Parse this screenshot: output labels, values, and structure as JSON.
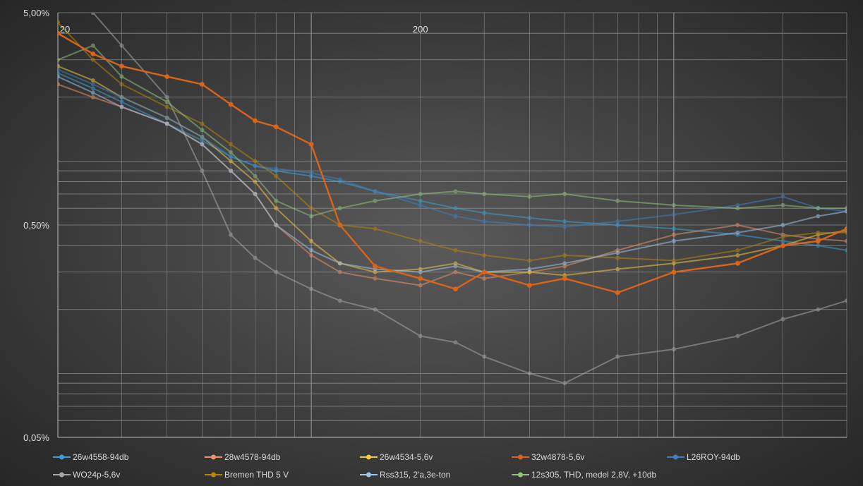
{
  "chart_data": {
    "type": "line",
    "title": "",
    "xlabel": "",
    "ylabel": "",
    "x_scale": "log",
    "y_scale": "log",
    "xlim": [
      20,
      3000
    ],
    "ylim": [
      0.05,
      5
    ],
    "x_tick_labels": [
      {
        "value": 20,
        "label": "20"
      },
      {
        "value": 200,
        "label": "200"
      }
    ],
    "y_tick_labels": [
      {
        "value": 5,
        "label": "5,00%"
      },
      {
        "value": 0.5,
        "label": "0,50%"
      },
      {
        "value": 0.05,
        "label": "0,05%"
      }
    ],
    "grid": true,
    "legend_position": "bottom",
    "series": [
      {
        "name": "26w4558-94db",
        "color": "#3aa1d8",
        "x": [
          20,
          25,
          30,
          40,
          50,
          60,
          70,
          80,
          100,
          120,
          150,
          200,
          250,
          300,
          400,
          500,
          700,
          1000,
          1500,
          2000,
          2500,
          3000
        ],
        "y": [
          2.6,
          2.2,
          1.9,
          1.5,
          1.25,
          1.05,
          0.95,
          0.9,
          0.85,
          0.8,
          0.72,
          0.65,
          0.6,
          0.57,
          0.54,
          0.52,
          0.5,
          0.48,
          0.45,
          0.42,
          0.4,
          0.38
        ]
      },
      {
        "name": "28w4578-94db",
        "color": "#e8936a",
        "x": [
          20,
          25,
          30,
          40,
          50,
          60,
          70,
          80,
          100,
          120,
          150,
          200,
          250,
          300,
          400,
          500,
          700,
          1000,
          1500,
          2000,
          2500,
          3000
        ],
        "y": [
          2.3,
          2.0,
          1.8,
          1.5,
          1.2,
          0.9,
          0.7,
          0.5,
          0.36,
          0.3,
          0.28,
          0.26,
          0.3,
          0.28,
          0.3,
          0.32,
          0.38,
          0.45,
          0.5,
          0.45,
          0.43,
          0.42
        ]
      },
      {
        "name": "26w4534-5,6v",
        "color": "#f2c744",
        "x": [
          20,
          25,
          30,
          40,
          50,
          60,
          70,
          80,
          100,
          120,
          150,
          200,
          250,
          300,
          400,
          500,
          700,
          1000,
          1500,
          2000,
          2500,
          3000
        ],
        "y": [
          2.8,
          2.4,
          2.0,
          1.6,
          1.3,
          1.0,
          0.8,
          0.6,
          0.42,
          0.33,
          0.3,
          0.31,
          0.33,
          0.3,
          0.3,
          0.29,
          0.31,
          0.33,
          0.36,
          0.4,
          0.45,
          0.47
        ]
      },
      {
        "name": "32w4878-5,6v",
        "color": "#d9641a",
        "x": [
          20,
          25,
          30,
          40,
          50,
          60,
          70,
          80,
          100,
          120,
          150,
          200,
          250,
          300,
          400,
          500,
          700,
          1000,
          1500,
          2000,
          2500,
          3000
        ],
        "y": [
          4.0,
          3.2,
          2.8,
          2.5,
          2.3,
          1.85,
          1.55,
          1.45,
          1.2,
          0.5,
          0.32,
          0.28,
          0.25,
          0.3,
          0.26,
          0.28,
          0.24,
          0.3,
          0.33,
          0.4,
          0.42,
          0.48
        ]
      },
      {
        "name": "L26ROY-94db",
        "color": "#3f7fc4",
        "x": [
          20,
          25,
          30,
          40,
          50,
          60,
          70,
          80,
          100,
          120,
          150,
          200,
          250,
          300,
          400,
          500,
          700,
          1000,
          1500,
          2000,
          2500,
          3000
        ],
        "y": [
          2.7,
          2.3,
          2.0,
          1.6,
          1.3,
          1.05,
          0.95,
          0.92,
          0.88,
          0.82,
          0.72,
          0.62,
          0.55,
          0.52,
          0.5,
          0.49,
          0.52,
          0.56,
          0.62,
          0.68,
          0.6,
          0.58
        ]
      },
      {
        "name": "WO24p-5,6v",
        "color": "#a8a8a8",
        "x": [
          20,
          25,
          30,
          40,
          50,
          60,
          70,
          80,
          100,
          120,
          150,
          200,
          250,
          300,
          400,
          500,
          700,
          1000,
          1500,
          2000,
          2500,
          3000
        ],
        "y": [
          6.0,
          5.0,
          3.5,
          2.0,
          0.9,
          0.45,
          0.35,
          0.3,
          0.25,
          0.22,
          0.2,
          0.15,
          0.14,
          0.12,
          0.1,
          0.09,
          0.12,
          0.13,
          0.15,
          0.18,
          0.2,
          0.22
        ]
      },
      {
        "name": "Bremen THD 5 V",
        "color": "#b8860b",
        "x": [
          20,
          25,
          30,
          40,
          50,
          60,
          70,
          80,
          100,
          120,
          150,
          200,
          250,
          300,
          400,
          500,
          700,
          1000,
          1500,
          2000,
          2500,
          3000
        ],
        "y": [
          4.5,
          3.0,
          2.3,
          1.8,
          1.5,
          1.2,
          1.0,
          0.85,
          0.6,
          0.5,
          0.48,
          0.42,
          0.38,
          0.36,
          0.34,
          0.36,
          0.35,
          0.34,
          0.38,
          0.44,
          0.46,
          0.46
        ]
      },
      {
        "name": "Rss315, 2'a,3e-ton",
        "color": "#9fc5e8",
        "x": [
          20,
          25,
          30,
          40,
          50,
          60,
          70,
          80,
          100,
          120,
          150,
          200,
          250,
          300,
          400,
          500,
          700,
          1000,
          1500,
          2000,
          2500,
          3000
        ],
        "y": [
          2.5,
          2.1,
          1.8,
          1.5,
          1.2,
          0.9,
          0.7,
          0.5,
          0.38,
          0.33,
          0.31,
          0.3,
          0.32,
          0.3,
          0.31,
          0.33,
          0.37,
          0.42,
          0.46,
          0.5,
          0.55,
          0.58
        ]
      },
      {
        "name": "12s305, THD, medel 2,8V, +10db",
        "color": "#93c47d",
        "x": [
          20,
          25,
          30,
          40,
          50,
          60,
          70,
          80,
          100,
          120,
          150,
          200,
          250,
          300,
          400,
          500,
          700,
          1000,
          1500,
          2000,
          2500,
          3000
        ],
        "y": [
          3.0,
          3.5,
          2.5,
          1.9,
          1.4,
          1.1,
          0.85,
          0.65,
          0.55,
          0.6,
          0.65,
          0.7,
          0.72,
          0.7,
          0.68,
          0.7,
          0.65,
          0.62,
          0.6,
          0.62,
          0.6,
          0.6
        ]
      }
    ]
  }
}
